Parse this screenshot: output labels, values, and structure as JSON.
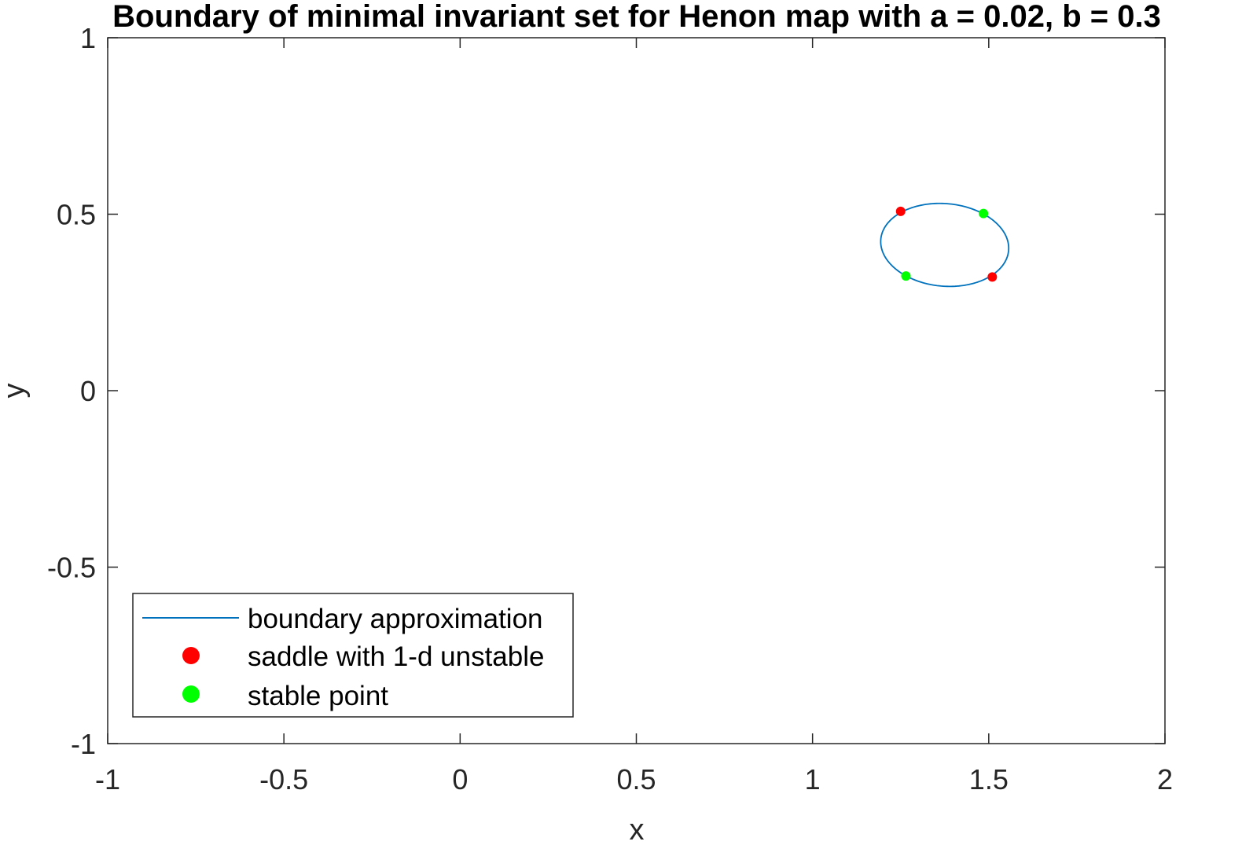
{
  "chart_data": {
    "type": "line",
    "title": "Boundary of minimal invariant set for Henon map with a = 0.02, b = 0.3",
    "xlabel": "x",
    "ylabel": "y",
    "xlim": [
      -1,
      2
    ],
    "ylim": [
      -1,
      1
    ],
    "xticks": [
      -1,
      -0.5,
      0,
      0.5,
      1,
      1.5,
      2
    ],
    "yticks": [
      -1,
      -0.5,
      0,
      0.5,
      1
    ],
    "xtick_labels": [
      "-1",
      "-0.5",
      "0",
      "0.5",
      "1",
      "1.5",
      "2"
    ],
    "ytick_labels": [
      "-1",
      "-0.5",
      "0",
      "0.5",
      "1"
    ],
    "grid": false,
    "legend_position": "bottom-left",
    "series": [
      {
        "name": "boundary approximation",
        "kind": "line",
        "color": "#0072BD",
        "ellipse": {
          "cx": 1.375,
          "cy": 0.413,
          "rx": 0.182,
          "ry": 0.117,
          "tilt_deg": -5
        }
      },
      {
        "name": "saddle with 1-d unstable",
        "kind": "marker",
        "color": "#FF0000",
        "x": [
          1.25,
          1.51
        ],
        "y": [
          0.508,
          0.322
        ]
      },
      {
        "name": "stable point",
        "kind": "marker",
        "color": "#00FF00",
        "x": [
          1.485,
          1.265
        ],
        "y": [
          0.502,
          0.325
        ]
      }
    ]
  }
}
